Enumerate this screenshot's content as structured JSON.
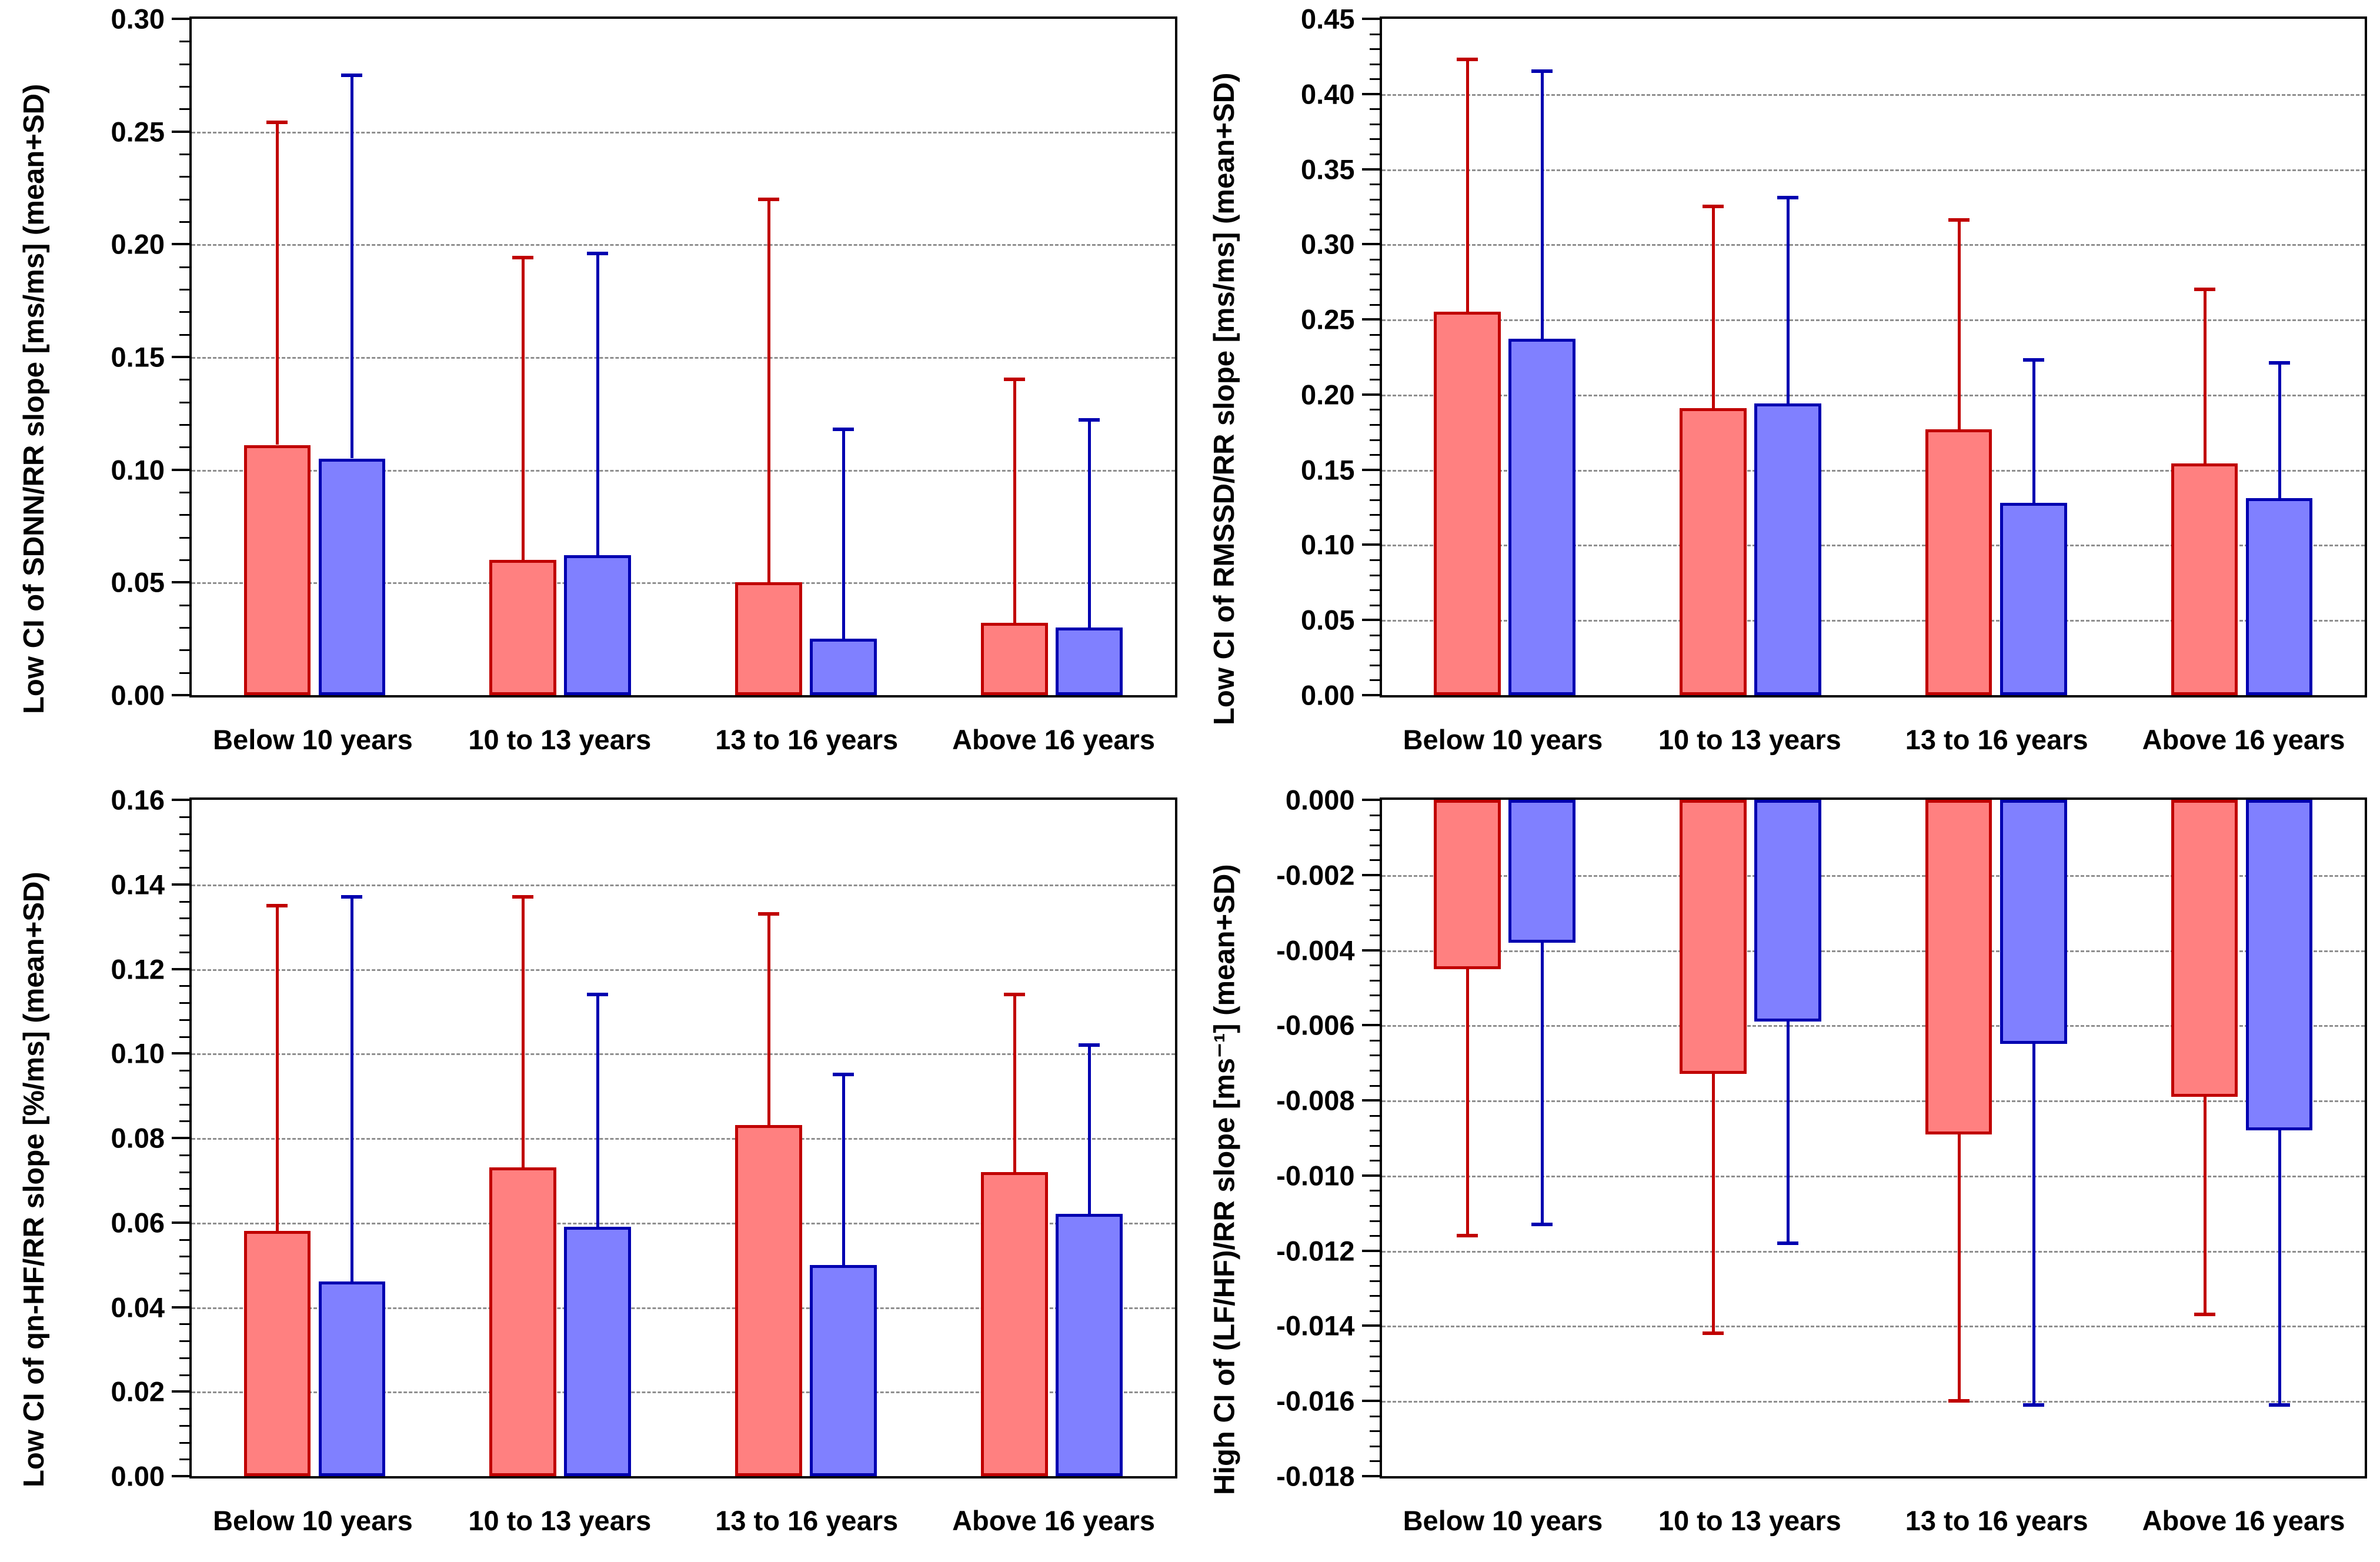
{
  "figure": {
    "description": "Four bar charts (2x2) comparing red and blue groups across four age categories, bars with one-sided SD whiskers",
    "categories": [
      "Below 10 years",
      "10 to 13 years",
      "13 to 16 years",
      "Above 16 years"
    ],
    "colors": {
      "red_fill": "#FF8080",
      "red_stroke": "#C00000",
      "blue_fill": "#8080FF",
      "blue_stroke": "#0000B0",
      "gridline": "#8F8F8F",
      "axis": "#000000",
      "background": "#FFFFFF"
    }
  },
  "chart_data": [
    {
      "type": "bar",
      "position": "top-left",
      "ylabel": "Low CI of SDNN/RR slope [ms/ms] (mean+SD)",
      "xlabel": "",
      "ylim": [
        0,
        0.3
      ],
      "ytick_major": 0.05,
      "ytick_minor": 0.01,
      "ytick_decimals": 2,
      "grid": "horizontal-dashed-at-majors",
      "legend": "none",
      "categories": [
        "Below 10 years",
        "10 to 13 years",
        "13 to 16 years",
        "Above 16 years"
      ],
      "series": [
        {
          "name": "red",
          "values": [
            0.111,
            0.06,
            0.05,
            0.032
          ],
          "errorbar_tips": [
            0.254,
            0.194,
            0.22,
            0.14
          ]
        },
        {
          "name": "blue",
          "values": [
            0.105,
            0.062,
            0.025,
            0.03
          ],
          "errorbar_tips": [
            0.275,
            0.196,
            0.118,
            0.122
          ]
        }
      ]
    },
    {
      "type": "bar",
      "position": "top-right",
      "ylabel": "Low CI of RMSSD/RR slope [ms/ms] (mean+SD)",
      "xlabel": "",
      "ylim": [
        0,
        0.45
      ],
      "ytick_major": 0.05,
      "ytick_minor": 0.01,
      "ytick_decimals": 2,
      "grid": "horizontal-dashed-at-majors",
      "legend": "none",
      "categories": [
        "Below 10 years",
        "10 to 13 years",
        "13 to 16 years",
        "Above 16 years"
      ],
      "series": [
        {
          "name": "red",
          "values": [
            0.255,
            0.191,
            0.177,
            0.154
          ],
          "errorbar_tips": [
            0.423,
            0.325,
            0.316,
            0.27
          ]
        },
        {
          "name": "blue",
          "values": [
            0.237,
            0.194,
            0.128,
            0.131
          ],
          "errorbar_tips": [
            0.415,
            0.331,
            0.223,
            0.221
          ]
        }
      ]
    },
    {
      "type": "bar",
      "position": "bottom-left",
      "ylabel": "Low CI of qn-HF/RR slope [%/ms] (mean+SD)",
      "xlabel": "",
      "ylim": [
        0,
        0.16
      ],
      "ytick_major": 0.02,
      "ytick_minor": 0.004,
      "ytick_decimals": 2,
      "grid": "horizontal-dashed-at-majors",
      "legend": "none",
      "categories": [
        "Below 10 years",
        "10 to 13 years",
        "13 to 16 years",
        "Above 16 years"
      ],
      "series": [
        {
          "name": "red",
          "values": [
            0.058,
            0.073,
            0.083,
            0.072
          ],
          "errorbar_tips": [
            0.135,
            0.137,
            0.133,
            0.114
          ]
        },
        {
          "name": "blue",
          "values": [
            0.046,
            0.059,
            0.05,
            0.062
          ],
          "errorbar_tips": [
            0.137,
            0.114,
            0.095,
            0.102
          ]
        }
      ]
    },
    {
      "type": "bar",
      "position": "bottom-right",
      "ylabel": "High CI of (LF/HF)/RR slope [ms⁻¹] (mean+SD)",
      "xlabel": "",
      "ylim": [
        -0.018,
        0
      ],
      "ytick_major": 0.002,
      "ytick_minor": 0.0004,
      "ytick_decimals": 3,
      "grid": "horizontal-dashed-at-majors",
      "legend": "none",
      "categories": [
        "Below 10 years",
        "10 to 13 years",
        "13 to 16 years",
        "Above 16 years"
      ],
      "series": [
        {
          "name": "red",
          "values": [
            -0.0045,
            -0.0073,
            -0.0089,
            -0.0079
          ],
          "errorbar_tips": [
            -0.0116,
            -0.0142,
            -0.016,
            -0.0137
          ]
        },
        {
          "name": "blue",
          "values": [
            -0.0038,
            -0.0059,
            -0.0065,
            -0.0088
          ],
          "errorbar_tips": [
            -0.0113,
            -0.0118,
            -0.0161,
            -0.0161
          ]
        }
      ]
    }
  ]
}
